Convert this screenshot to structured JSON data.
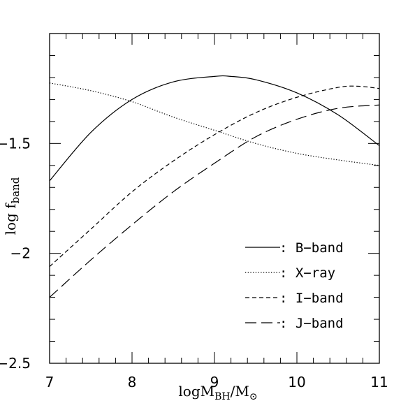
{
  "chart_data": {
    "type": "line",
    "xlabel": "logM",
    "xlabel_sub": "BH",
    "xlabel_suffix": "/M",
    "xlabel_sub2": "⊙",
    "ylabel": "log f",
    "ylabel_sub": "band",
    "xlim": [
      7,
      11
    ],
    "ylim": [
      -2.5,
      -1
    ],
    "x_ticks": [
      "7",
      "8",
      "9",
      "10",
      "11"
    ],
    "y_ticks": [
      "−1.5",
      "−2",
      "−2.5"
    ],
    "legend_placement": "bottom-right",
    "series": [
      {
        "name": "B-band",
        "legend": ": B−band",
        "style": "solid",
        "x": [
          7.0,
          7.5,
          8.0,
          8.5,
          9.0,
          9.2,
          9.5,
          10.0,
          10.5,
          11.0
        ],
        "y": [
          -1.67,
          -1.45,
          -1.3,
          -1.22,
          -1.195,
          -1.195,
          -1.21,
          -1.27,
          -1.37,
          -1.51
        ]
      },
      {
        "name": "X-ray",
        "legend": ": X−ray",
        "style": "dotted",
        "x": [
          7.0,
          7.5,
          8.0,
          8.5,
          9.0,
          9.5,
          10.0,
          10.5,
          11.0
        ],
        "y": [
          -1.225,
          -1.26,
          -1.31,
          -1.38,
          -1.44,
          -1.5,
          -1.545,
          -1.575,
          -1.6
        ]
      },
      {
        "name": "I-band",
        "legend": ": I−band",
        "style": "short-dashed",
        "x": [
          7.0,
          7.5,
          8.0,
          8.5,
          9.0,
          9.5,
          10.0,
          10.5,
          10.75,
          11.0
        ],
        "y": [
          -2.06,
          -1.89,
          -1.72,
          -1.58,
          -1.46,
          -1.36,
          -1.29,
          -1.245,
          -1.24,
          -1.25
        ]
      },
      {
        "name": "J-band",
        "legend": ": J−band",
        "style": "long-dashed",
        "x": [
          7.0,
          7.5,
          8.0,
          8.5,
          9.0,
          9.5,
          10.0,
          10.5,
          11.0
        ],
        "y": [
          -2.2,
          -2.03,
          -1.87,
          -1.72,
          -1.59,
          -1.47,
          -1.39,
          -1.34,
          -1.325
        ]
      }
    ]
  }
}
